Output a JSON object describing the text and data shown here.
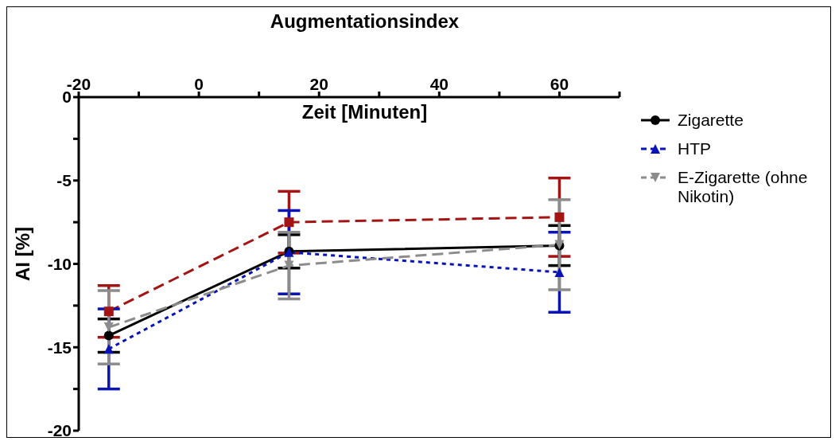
{
  "chart_data": {
    "type": "line",
    "title": "Augmentationsindex",
    "xlabel": "Zeit [Minuten]",
    "ylabel": "AI [%]",
    "x": [
      -15,
      15,
      60
    ],
    "series": [
      {
        "name": "Zigarette",
        "color": "#000000",
        "values": [
          -14.3,
          -9.25,
          -8.9
        ],
        "errors": [
          1,
          1,
          1.2
        ],
        "marker": "circle",
        "line_style": "solid"
      },
      {
        "color": "#a31515",
        "values": [
          -12.85,
          -7.5,
          -7.2
        ],
        "errors": [
          1.55,
          1.85,
          2.35
        ],
        "marker": "square",
        "line_style": "dashed"
      },
      {
        "name": "HTP",
        "color": "#0a14b4",
        "values": [
          -15.1,
          -9.3,
          -10.5
        ],
        "errors": [
          2.4,
          2.5,
          2.4
        ],
        "marker": "triangle",
        "line_style": "dotted"
      },
      {
        "name": "E-Zigarette (ohne Nikotin)",
        "color": "#8c8c8c",
        "values": [
          -13.8,
          -10.1,
          -8.85
        ],
        "errors": [
          2.2,
          2,
          2.7
        ],
        "marker": "triangle-down",
        "line_style": "dashed"
      }
    ],
    "xlim": [
      -20,
      70
    ],
    "xticks": [
      -20,
      {
        "value": -10,
        "label": null
      },
      0,
      {
        "value": 10,
        "label": null
      },
      20,
      {
        "value": 30,
        "label": null
      },
      40,
      {
        "value": 50,
        "label": null
      },
      60,
      {
        "value": 70,
        "label": null
      }
    ],
    "ylim": [
      -20,
      0
    ],
    "yticks": [
      -20,
      {
        "value": -17.5,
        "label": null
      },
      -15,
      {
        "value": -12.5,
        "label": null
      },
      -10,
      {
        "value": -7.5,
        "label": null
      },
      -5,
      {
        "value": -2.5,
        "label": null
      },
      0
    ],
    "legend": "right"
  }
}
